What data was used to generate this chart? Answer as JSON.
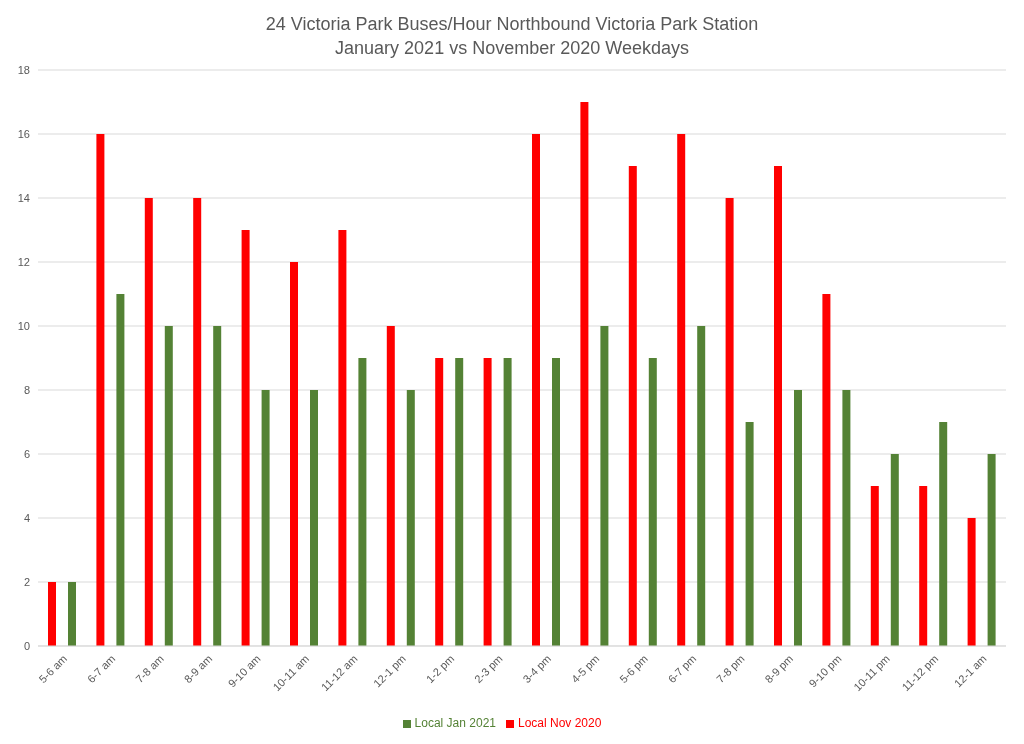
{
  "chart_data": {
    "type": "bar",
    "title": "24 Victoria Park Buses/Hour Northbound Victoria Park Station",
    "subtitle": "January 2021 vs November 2020 Weekdays",
    "categories": [
      "5-6 am",
      "6-7 am",
      "7-8 am",
      "8-9 am",
      "9-10 am",
      "10-11 am",
      "11-12 am",
      "12-1 pm",
      "1-2 pm",
      "2-3 pm",
      "3-4 pm",
      "4-5 pm",
      "5-6 pm",
      "6-7 pm",
      "7-8 pm",
      "8-9 pm",
      "9-10 pm",
      "10-11 pm",
      "11-12 pm",
      "12-1 am"
    ],
    "series": [
      {
        "name": "Local Nov 2020",
        "color": "#ff0000",
        "values": [
          2,
          16,
          14,
          14,
          13,
          12,
          13,
          10,
          9,
          9,
          16,
          17,
          15,
          16,
          14,
          15,
          11,
          5,
          5,
          4
        ]
      },
      {
        "name": "Local Jan 2021",
        "color": "#548235",
        "values": [
          2,
          11,
          10,
          10,
          8,
          8,
          9,
          8,
          9,
          9,
          9,
          10,
          9,
          10,
          7,
          8,
          8,
          6,
          7,
          6
        ]
      }
    ],
    "ylim": [
      0,
      18
    ],
    "yticks": [
      0,
      2,
      4,
      6,
      8,
      10,
      12,
      14,
      16,
      18
    ],
    "grid": "y",
    "legend": "bottom"
  }
}
